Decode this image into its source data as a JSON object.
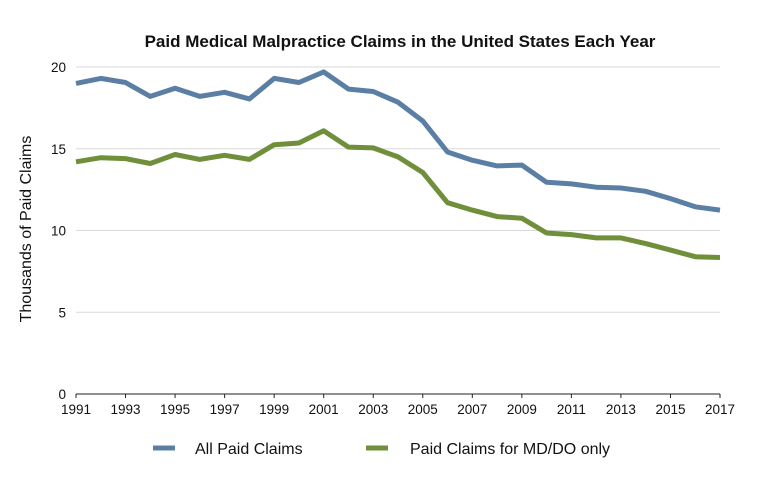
{
  "chart_data": {
    "type": "line",
    "title": "Paid Medical Malpractice Claims in the United States Each Year",
    "xlabel": "",
    "ylabel": "Thousands of Paid Claims",
    "xlim": [
      1991,
      2017
    ],
    "ylim": [
      0,
      20
    ],
    "yticks": [
      0,
      5,
      10,
      15,
      20
    ],
    "xticks": [
      1991,
      1993,
      1995,
      1997,
      1999,
      2001,
      2003,
      2005,
      2007,
      2009,
      2011,
      2013,
      2015,
      2017
    ],
    "grid": true,
    "legend_position": "bottom",
    "x": [
      1991,
      1992,
      1993,
      1994,
      1995,
      1996,
      1997,
      1998,
      1999,
      2000,
      2001,
      2002,
      2003,
      2004,
      2005,
      2006,
      2007,
      2008,
      2009,
      2010,
      2011,
      2012,
      2013,
      2014,
      2015,
      2016,
      2017
    ],
    "series": [
      {
        "name": "All Paid Claims",
        "color": "#5b7fa4",
        "values": [
          19.0,
          19.3,
          19.05,
          18.2,
          18.7,
          18.2,
          18.45,
          18.05,
          19.3,
          19.05,
          19.7,
          18.65,
          18.5,
          17.85,
          16.7,
          14.8,
          14.3,
          13.95,
          14.0,
          12.95,
          12.85,
          12.65,
          12.6,
          12.4,
          11.95,
          11.45,
          11.25
        ]
      },
      {
        "name": "Paid Claims for MD/DO only",
        "color": "#6f8f3a",
        "values": [
          14.2,
          14.45,
          14.4,
          14.1,
          14.65,
          14.35,
          14.6,
          14.35,
          15.25,
          15.35,
          16.1,
          15.1,
          15.05,
          14.5,
          13.55,
          11.7,
          11.25,
          10.85,
          10.75,
          9.85,
          9.75,
          9.55,
          9.55,
          9.2,
          8.8,
          8.4,
          8.35
        ]
      }
    ]
  }
}
